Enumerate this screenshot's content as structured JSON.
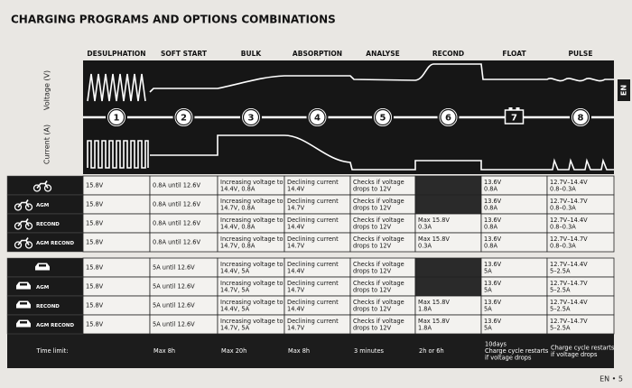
{
  "title": "CHARGING PROGRAMS AND OPTIONS COMBINATIONS",
  "side_tab": "EN",
  "footer": "EN • 5",
  "axis_labels": {
    "voltage": "Voltage (V)",
    "current": "Current (A)"
  },
  "stages": [
    {
      "name": "DESULPHATION",
      "number": 1
    },
    {
      "name": "SOFT START",
      "number": 2
    },
    {
      "name": "BULK",
      "number": 3
    },
    {
      "name": "ABSORPTION",
      "number": 4
    },
    {
      "name": "ANALYSE",
      "number": 5
    },
    {
      "name": "RECOND",
      "number": 6
    },
    {
      "name": "FLOAT",
      "number": 7
    },
    {
      "name": "PULSE",
      "number": 8
    }
  ],
  "motorcycle_rows": [
    {
      "cells": [
        [
          "15.8V"
        ],
        [
          "0.8A until 12.6V"
        ],
        [
          "Increasing voltage to",
          "14.4V, 0.8A"
        ],
        [
          "Declining current",
          "14.4V"
        ],
        [
          "Checks if voltage",
          "drops to 12V"
        ],
        null,
        [
          "13.6V",
          "0.8A"
        ],
        [
          "12.7V–14.4V",
          "0.8–0.3A"
        ]
      ]
    },
    {
      "label": "AGM",
      "cells": [
        [
          "15.8V"
        ],
        [
          "0.8A until 12.6V"
        ],
        [
          "Increasing voltage to",
          "14.7V, 0.8A"
        ],
        [
          "Declining current",
          "14.7V"
        ],
        [
          "Checks if voltage",
          "drops to 12V"
        ],
        null,
        [
          "13.6V",
          "0.8A"
        ],
        [
          "12.7V–14.7V",
          "0.8–0.3A"
        ]
      ]
    },
    {
      "label": "RECOND",
      "cells": [
        [
          "15.8V"
        ],
        [
          "0.8A until 12.6V"
        ],
        [
          "Increasing voltage to",
          "14.4V, 0.8A"
        ],
        [
          "Declining current",
          "14.4V"
        ],
        [
          "Checks if voltage",
          "drops to 12V"
        ],
        [
          "Max 15.8V",
          "0.3A"
        ],
        [
          "13.6V",
          "0.8A"
        ],
        [
          "12.7V–14.4V",
          "0.8–0.3A"
        ]
      ]
    },
    {
      "label": "AGM RECOND",
      "cells": [
        [
          "15.8V"
        ],
        [
          "0.8A until 12.6V"
        ],
        [
          "Increasing voltage to",
          "14.7V, 0.8A"
        ],
        [
          "Declining current",
          "14.7V"
        ],
        [
          "Checks if voltage",
          "drops to 12V"
        ],
        [
          "Max 15.8V",
          "0.3A"
        ],
        [
          "13.6V",
          "0.8A"
        ],
        [
          "12.7V–14.7V",
          "0.8–0.3A"
        ]
      ]
    }
  ],
  "car_rows": [
    {
      "cells": [
        [
          "15.8V"
        ],
        [
          "5A until 12.6V"
        ],
        [
          "Increasing voltage to",
          "14.4V, 5A"
        ],
        [
          "Declining current",
          "14.4V"
        ],
        [
          "Checks if voltage",
          "drops to 12V"
        ],
        null,
        [
          "13.6V",
          "5A"
        ],
        [
          "12.7V–14.4V",
          "5–2.5A"
        ]
      ]
    },
    {
      "label": "AGM",
      "cells": [
        [
          "15.8V"
        ],
        [
          "5A until 12.6V"
        ],
        [
          "Increasing voltage to",
          "14.7V, 5A"
        ],
        [
          "Declining current",
          "14.7V"
        ],
        [
          "Checks if voltage",
          "drops to 12V"
        ],
        null,
        [
          "13.6V",
          "5A"
        ],
        [
          "12.7V–14.7V",
          "5–2.5A"
        ]
      ]
    },
    {
      "label": "RECOND",
      "cells": [
        [
          "15.8V"
        ],
        [
          "5A until 12.6V"
        ],
        [
          "Increasing voltage to",
          "14.4V, 5A"
        ],
        [
          "Declining current",
          "14.4V"
        ],
        [
          "Checks if voltage",
          "drops to 12V"
        ],
        [
          "Max 15.8V",
          "1.8A"
        ],
        [
          "13.6V",
          "5A"
        ],
        [
          "12.7V–14.4V",
          "5–2.5A"
        ]
      ]
    },
    {
      "label": "AGM RECOND",
      "cells": [
        [
          "15.8V"
        ],
        [
          "5A until 12.6V"
        ],
        [
          "Increasing voltage to",
          "14.7V, 5A"
        ],
        [
          "Declining current",
          "14.7V"
        ],
        [
          "Checks if voltage",
          "drops to 12V"
        ],
        [
          "Max 15.8V",
          "1.8A"
        ],
        [
          "13.6V",
          "5A"
        ],
        [
          "12.7V–14.7V",
          "5–2.5A"
        ]
      ]
    }
  ],
  "time_limit": {
    "label": "Time limit:",
    "cells": [
      null,
      [
        "Max 8h"
      ],
      [
        "Max 20h"
      ],
      [
        "Max 8h"
      ],
      [
        "3 minutes"
      ],
      [
        "2h or 6h"
      ],
      [
        "10days",
        "Charge cycle restarts",
        "if voltage drops"
      ],
      [
        "Charge cycle restarts",
        "if voltage drops"
      ]
    ]
  }
}
